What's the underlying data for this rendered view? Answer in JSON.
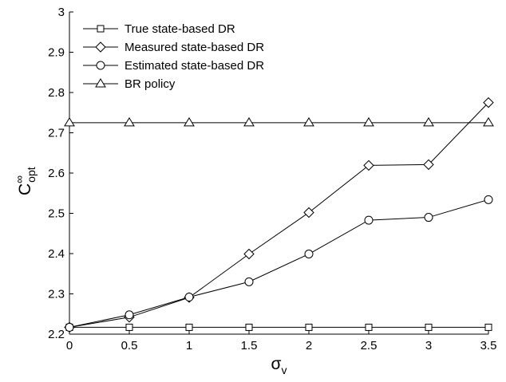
{
  "chart_data": {
    "type": "line",
    "x": [
      0,
      0.5,
      1,
      1.5,
      2,
      2.5,
      3,
      3.5
    ],
    "series": [
      {
        "name": "True state-based DR",
        "marker": "square",
        "values": [
          2.217,
          2.217,
          2.217,
          2.217,
          2.217,
          2.217,
          2.217,
          2.217
        ]
      },
      {
        "name": "Measured state-based DR",
        "marker": "diamond",
        "values": [
          2.217,
          2.242,
          2.291,
          2.399,
          2.502,
          2.619,
          2.621,
          2.775
        ]
      },
      {
        "name": "Estimated state-based DR",
        "marker": "circle",
        "values": [
          2.217,
          2.248,
          2.292,
          2.33,
          2.399,
          2.483,
          2.49,
          2.534
        ]
      },
      {
        "name": "BR policy",
        "marker": "triangle",
        "values": [
          2.725,
          2.725,
          2.725,
          2.725,
          2.725,
          2.725,
          2.725,
          2.725
        ]
      }
    ],
    "xlim": [
      0,
      3.5
    ],
    "ylim": [
      2.2,
      3.0
    ],
    "xticks": [
      "0",
      "0.5",
      "1",
      "1.5",
      "2",
      "2.5",
      "3",
      "3.5"
    ],
    "yticks": [
      "2.2",
      "2.3",
      "2.4",
      "2.5",
      "2.6",
      "2.7",
      "2.8",
      "2.9",
      "3"
    ],
    "xlabel": {
      "main": "σ",
      "sub": "v"
    },
    "ylabel": {
      "main": "C",
      "sup": "∞",
      "sub": "opt"
    },
    "grid": false,
    "legend": "top-left",
    "line_color": "#000000"
  }
}
